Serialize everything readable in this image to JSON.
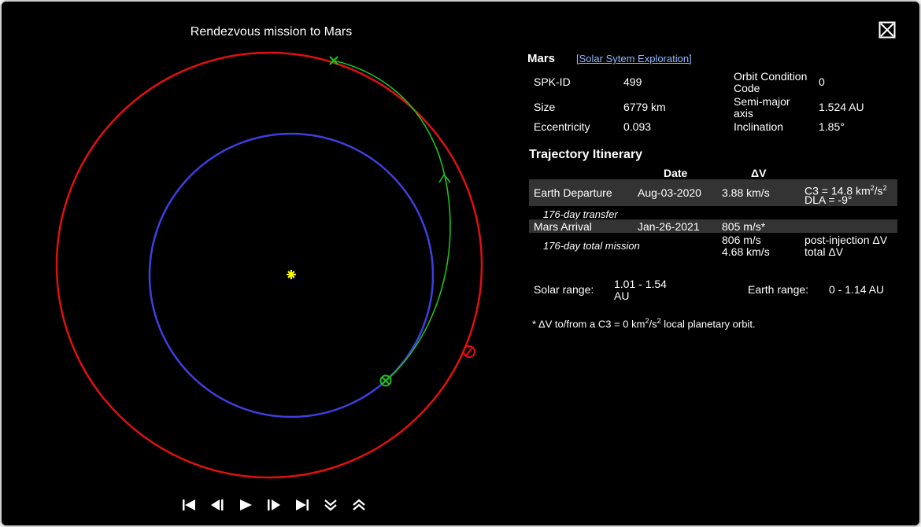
{
  "plot": {
    "title": "Rendezvous mission to Mars"
  },
  "planet": {
    "name": "Mars",
    "link": "[Solar Sytem Exploration]",
    "spk_id_label": "SPK-ID",
    "spk_id": "499",
    "size_label": "Size",
    "size": "6779 km",
    "ecc_label": "Eccentricity",
    "ecc": "0.093",
    "occ_label": "Orbit Condition Code",
    "occ": "0",
    "sma_label": "Semi-major axis",
    "sma": "1.524 AU",
    "inc_label": "Inclination",
    "inc": "1.85°"
  },
  "itinerary": {
    "title": "Trajectory Itinerary",
    "col_date": "Date",
    "col_dv": "ΔV",
    "departure_label": "Earth Departure",
    "departure_date": "Aug-03-2020",
    "departure_dv": "3.88 km/s",
    "c3_prefix": "C3 = 14.8 km",
    "c3_sup1": "2",
    "c3_mid": "/s",
    "c3_sup2": "2",
    "dla": "DLA = -9°",
    "transfer": "176-day transfer",
    "arrival_label": "Mars Arrival",
    "arrival_date": "Jan-26-2021",
    "arrival_dv": "805 m/s*",
    "total_label": "176-day total mission",
    "post_dv": "806 m/s",
    "total_dv": "4.68 km/s",
    "post_label": "post-injection ΔV",
    "total_dv_label": "total ΔV"
  },
  "ranges": {
    "solar_label": "Solar range:",
    "solar_value": "1.01 - 1.54 AU",
    "earth_label": "Earth range:",
    "earth_value": "0 - 1.14 AU"
  },
  "footnote": {
    "prefix": "* ΔV to/from a C3 = 0 km",
    "sup1": "2",
    "mid": "/s",
    "sup2": "2",
    "suffix": " local planetary orbit."
  },
  "colors": {
    "earth_orbit": "#3f3fe0",
    "mars_orbit": "#e01010",
    "trajectory": "#1fbf1f",
    "sun": "#ffff00"
  },
  "icons": {
    "close": "close-box-icon",
    "first": "skip-first-icon",
    "step_back": "step-back-icon",
    "play": "play-icon",
    "step_forward": "step-forward-icon",
    "last": "skip-last-icon",
    "slower": "chevron-double-down-icon",
    "faster": "chevron-double-up-icon"
  }
}
